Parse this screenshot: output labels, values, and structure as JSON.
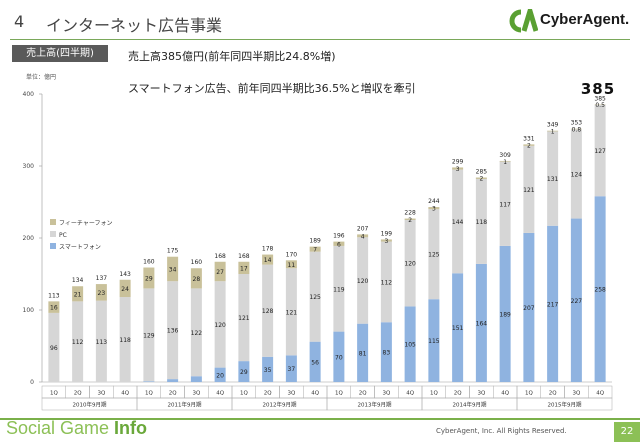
{
  "slide": {
    "number": "4",
    "title": "インターネット広告事業"
  },
  "logo": {
    "text": "CyberAgent."
  },
  "badge": "売上高(四半期)",
  "headline1": "売上高385億円(前年同四半期比24.8%増)",
  "headline2": "スマートフォン広告、前年同四半期比36.5%と増収を牽引",
  "total_emphasis": "385",
  "footer": {
    "brand_light": "Social Game ",
    "brand_bold": "Info",
    "copyright": "CyberAgent, Inc. All Rights Reserved.",
    "page": "22"
  },
  "colors": {
    "smartphone": "#8fb3e0",
    "pc": "#d6d6d6",
    "feature_phone": "#c9c19a",
    "accent": "#8cc056"
  },
  "chart_data": {
    "type": "bar",
    "stacked": true,
    "unit_label": "単位：億円",
    "ylim": [
      0,
      400
    ],
    "yticks": [
      0,
      100,
      200,
      300,
      400
    ],
    "grid": false,
    "legend_position": "left",
    "categories": [
      "1Q",
      "2Q",
      "3Q",
      "4Q",
      "1Q",
      "2Q",
      "3Q",
      "4Q",
      "1Q",
      "2Q",
      "3Q",
      "4Q",
      "1Q",
      "2Q",
      "3Q",
      "4Q",
      "1Q",
      "2Q",
      "3Q",
      "4Q",
      "1Q",
      "2Q",
      "3Q",
      "4Q"
    ],
    "year_groups": [
      {
        "label": "2010年9月期",
        "count": 4
      },
      {
        "label": "2011年9月期",
        "count": 4
      },
      {
        "label": "2012年9月期",
        "count": 4
      },
      {
        "label": "2013年9月期",
        "count": 4
      },
      {
        "label": "2014年9月期",
        "count": 4
      },
      {
        "label": "2015年9月期",
        "count": 4
      }
    ],
    "series": [
      {
        "name": "スマートフォン",
        "values": [
          0,
          0,
          0,
          0,
          1,
          4,
          8,
          20,
          29,
          35,
          37,
          56,
          70,
          81,
          83,
          105,
          115,
          151,
          164,
          189,
          207,
          217,
          227,
          258
        ],
        "labels": [
          "",
          "",
          "",
          "",
          "1",
          "4",
          "8",
          "20",
          "29",
          "35",
          "37",
          "56",
          "70",
          "81",
          "83",
          "105",
          "115",
          "151",
          "164",
          "189",
          "207",
          "217",
          "227",
          "258"
        ]
      },
      {
        "name": "PC",
        "values": [
          96,
          112,
          113,
          118,
          129,
          136,
          122,
          120,
          121,
          128,
          121,
          125,
          119,
          120,
          112,
          120,
          125,
          144,
          118,
          117,
          121,
          131,
          124,
          127
        ],
        "labels": [
          "96",
          "112",
          "113",
          "118",
          "129",
          "136",
          "122",
          "120",
          "121",
          "128",
          "121",
          "125",
          "119",
          "120",
          "112",
          "120",
          "125",
          "144",
          "118",
          "117",
          "121",
          "131",
          "124",
          "127"
        ]
      },
      {
        "name": "フィーチャーフォン",
        "values": [
          16,
          21,
          23,
          24,
          29,
          34,
          28,
          27,
          17,
          14,
          11,
          7,
          6,
          4,
          3,
          2,
          3,
          3,
          2,
          1,
          2,
          1,
          0.8,
          0.5
        ],
        "labels": [
          "16",
          "21",
          "23",
          "24",
          "29",
          "34",
          "28",
          "27",
          "17",
          "14",
          "11",
          "7",
          "6",
          "4",
          "3",
          "2",
          "3",
          "3",
          "2",
          "1",
          "2",
          "1",
          "0.8",
          "0.5"
        ]
      }
    ],
    "totals": [
      "113",
      "134",
      "137",
      "143",
      "160",
      "175",
      "160",
      "168",
      "168",
      "178",
      "170",
      "189",
      "196",
      "207",
      "199",
      "228",
      "244",
      "299",
      "285",
      "309",
      "331",
      "349",
      "353",
      "385"
    ]
  }
}
